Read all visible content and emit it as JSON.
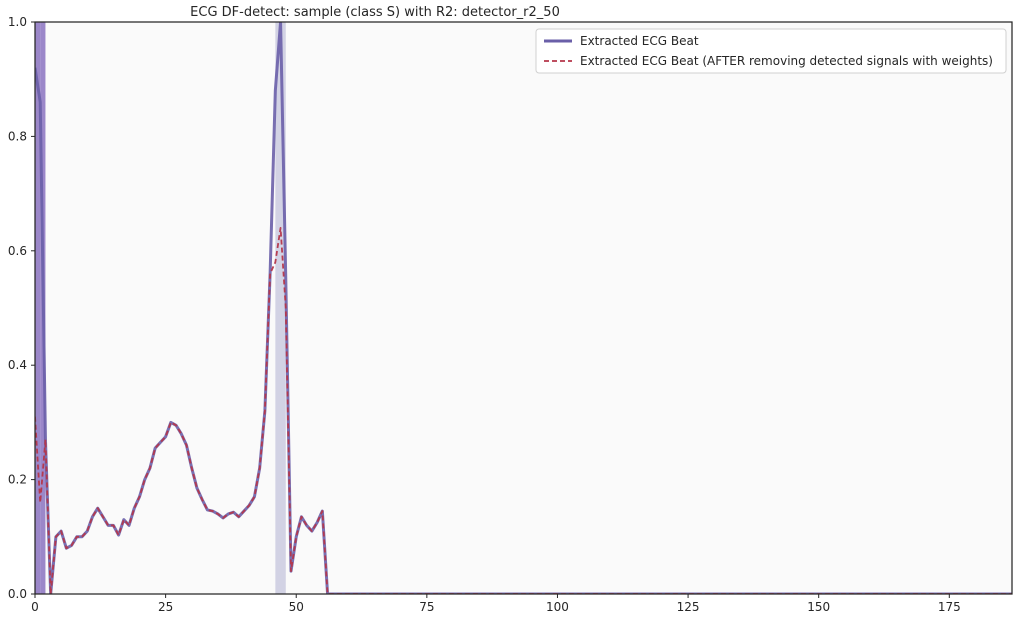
{
  "chart_data": {
    "type": "line",
    "title": "ECG DF-detect: sample (class S) with R2: detector_r2_50",
    "xlabel": "",
    "ylabel": "",
    "xlim": [
      0,
      187
    ],
    "ylim": [
      0,
      1.0
    ],
    "x_ticks": [
      0,
      25,
      50,
      75,
      100,
      125,
      150,
      175
    ],
    "y_ticks": [
      0.0,
      0.2,
      0.4,
      0.6,
      0.8,
      1.0
    ],
    "x_tick_labels": [
      "0",
      "25",
      "50",
      "75",
      "100",
      "125",
      "150",
      "175"
    ],
    "y_tick_labels": [
      "0.0",
      "0.2",
      "0.4",
      "0.6",
      "0.8",
      "1.0"
    ],
    "grid": false,
    "legend_position": "top-right",
    "colors": {
      "plot_background": "#fafafa",
      "original_line": "#6a5fa8",
      "modified_line": "#b5364a",
      "band_strong": "#7b60b8",
      "band_light": "#b8b8d6"
    },
    "highlight_bands": [
      {
        "x_start": 0,
        "x_end": 1,
        "style": "strong"
      },
      {
        "x_start": 1,
        "x_end": 2,
        "style": "strong"
      },
      {
        "x_start": 46,
        "x_end": 48,
        "style": "light"
      }
    ],
    "series": [
      {
        "name": "Extracted ECG Beat",
        "style": "solid",
        "x": [
          0,
          1,
          2,
          3,
          4,
          5,
          6,
          7,
          8,
          9,
          10,
          11,
          12,
          13,
          14,
          15,
          16,
          17,
          18,
          19,
          20,
          21,
          22,
          23,
          24,
          25,
          26,
          27,
          28,
          29,
          30,
          31,
          32,
          33,
          34,
          35,
          36,
          37,
          38,
          39,
          40,
          41,
          42,
          43,
          44,
          45,
          46,
          47,
          48,
          49,
          50,
          51,
          52,
          53,
          54,
          55,
          56,
          57,
          187
        ],
        "values": [
          0.92,
          0.86,
          0.27,
          0.0,
          0.1,
          0.11,
          0.08,
          0.085,
          0.1,
          0.1,
          0.11,
          0.135,
          0.15,
          0.135,
          0.12,
          0.12,
          0.103,
          0.13,
          0.12,
          0.15,
          0.17,
          0.2,
          0.22,
          0.255,
          0.265,
          0.275,
          0.3,
          0.295,
          0.28,
          0.26,
          0.22,
          0.185,
          0.165,
          0.147,
          0.145,
          0.14,
          0.133,
          0.14,
          0.143,
          0.135,
          0.145,
          0.155,
          0.17,
          0.22,
          0.32,
          0.56,
          0.88,
          1.0,
          0.55,
          0.04,
          0.1,
          0.135,
          0.12,
          0.11,
          0.125,
          0.145,
          0.0,
          0.0,
          0.0
        ]
      },
      {
        "name": "Extracted ECG Beat (AFTER removing detected signals with weights)",
        "style": "dashed",
        "x": [
          0,
          1,
          2,
          3,
          4,
          5,
          6,
          7,
          8,
          9,
          10,
          11,
          12,
          13,
          14,
          15,
          16,
          17,
          18,
          19,
          20,
          21,
          22,
          23,
          24,
          25,
          26,
          27,
          28,
          29,
          30,
          31,
          32,
          33,
          34,
          35,
          36,
          37,
          38,
          39,
          40,
          41,
          42,
          43,
          44,
          45,
          46,
          47,
          48,
          49,
          50,
          51,
          52,
          53,
          54,
          55,
          56,
          57,
          187
        ],
        "values": [
          0.31,
          0.16,
          0.27,
          0.0,
          0.1,
          0.11,
          0.08,
          0.085,
          0.1,
          0.1,
          0.11,
          0.135,
          0.15,
          0.135,
          0.12,
          0.12,
          0.103,
          0.13,
          0.12,
          0.15,
          0.17,
          0.2,
          0.22,
          0.255,
          0.265,
          0.275,
          0.3,
          0.295,
          0.28,
          0.26,
          0.22,
          0.185,
          0.165,
          0.147,
          0.145,
          0.14,
          0.133,
          0.14,
          0.143,
          0.135,
          0.145,
          0.155,
          0.17,
          0.22,
          0.32,
          0.56,
          0.58,
          0.64,
          0.5,
          0.04,
          0.1,
          0.135,
          0.12,
          0.11,
          0.125,
          0.145,
          0.0,
          0.0,
          0.0
        ]
      }
    ]
  }
}
